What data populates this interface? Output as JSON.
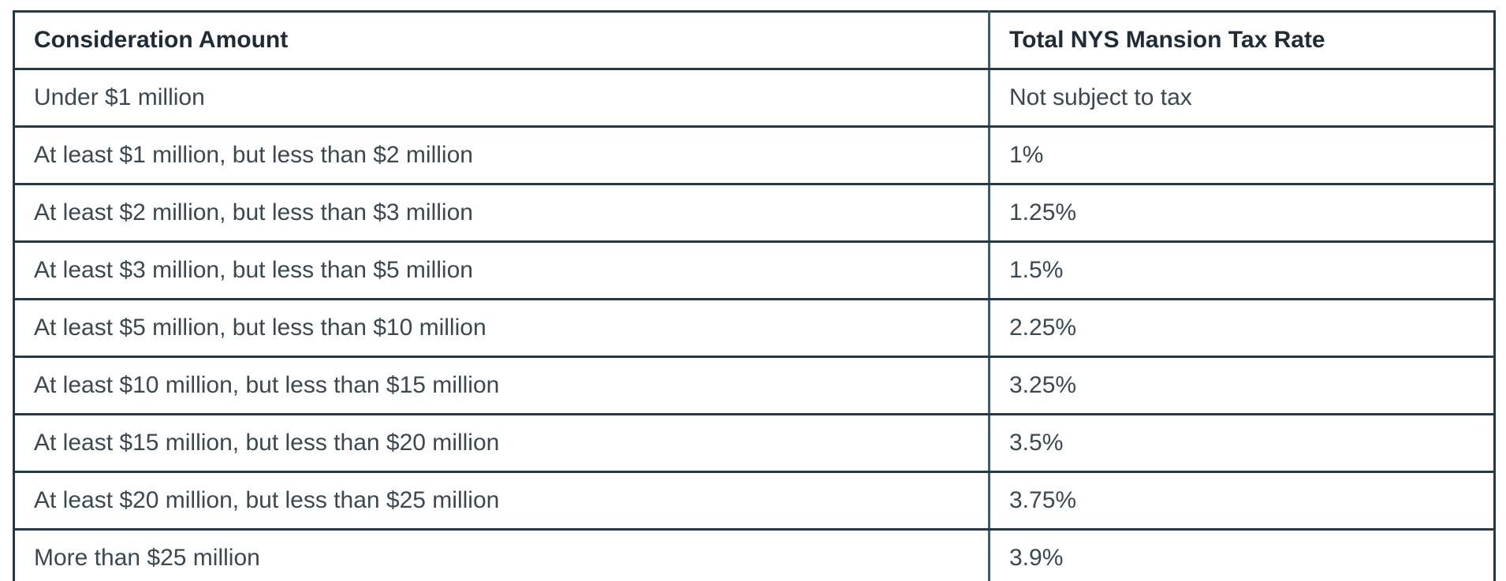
{
  "table": {
    "headers": {
      "consideration": "Consideration Amount",
      "rate": "Total NYS Mansion Tax Rate"
    },
    "rows": [
      {
        "consideration": "Under $1 million",
        "rate": "Not subject to tax"
      },
      {
        "consideration": "At least $1 million, but less than $2 million",
        "rate": "1%"
      },
      {
        "consideration": "At least $2 million, but less than $3 million",
        "rate": "1.25%"
      },
      {
        "consideration": "At least $3 million, but less than $5 million",
        "rate": "1.5%"
      },
      {
        "consideration": "At least $5 million, but less than $10 million",
        "rate": "2.25%"
      },
      {
        "consideration": "At least $10 million, but less than $15 million",
        "rate": "3.25%"
      },
      {
        "consideration": "At least $15 million, but less than $20 million",
        "rate": "3.5%"
      },
      {
        "consideration": "At least $20 million, but less than $25 million",
        "rate": "3.75%"
      },
      {
        "consideration": "More than $25 million",
        "rate": "3.9%"
      }
    ],
    "colors": {
      "border_dark": "#22394a",
      "border_divider": "#3e5c70",
      "header_text": "#1e2c38",
      "body_text": "#3a4852"
    }
  }
}
